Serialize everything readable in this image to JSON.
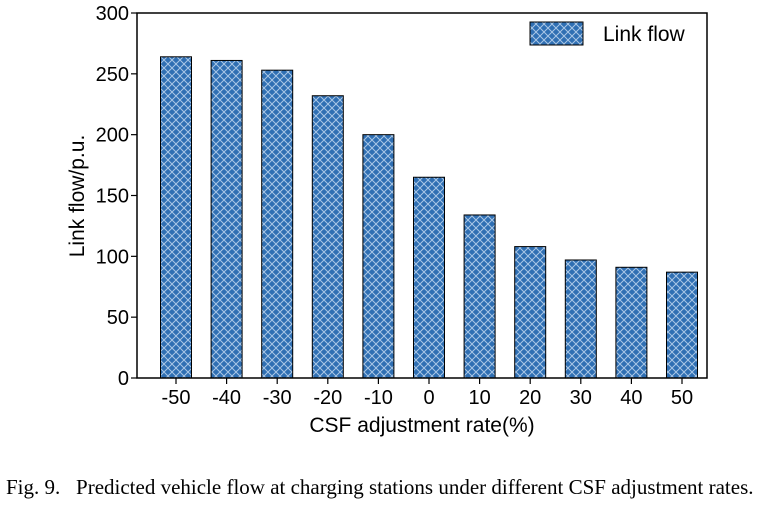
{
  "chart_data": {
    "type": "bar",
    "categories": [
      "-50",
      "-40",
      "-30",
      "-20",
      "-10",
      "0",
      "10",
      "20",
      "30",
      "40",
      "50"
    ],
    "series": [
      {
        "name": "Link flow",
        "values": [
          264,
          261,
          253,
          232,
          200,
          165,
          134,
          108,
          97,
          91,
          87
        ]
      }
    ],
    "xlabel": "CSF adjustment rate(%)",
    "ylabel": "Link flow/p.u.",
    "ylim": [
      0,
      300
    ],
    "yticks": [
      0,
      50,
      100,
      150,
      200,
      250,
      300
    ],
    "grid": false,
    "legend_position": "top-right"
  },
  "colors": {
    "bar_fill": "#2f6fb3",
    "hatch": "#a9c6e6",
    "bar_edge": "#000000"
  },
  "caption": {
    "label": "Fig. 9.",
    "text": "Predicted vehicle flow at charging stations under different CSF adjustment rates."
  }
}
